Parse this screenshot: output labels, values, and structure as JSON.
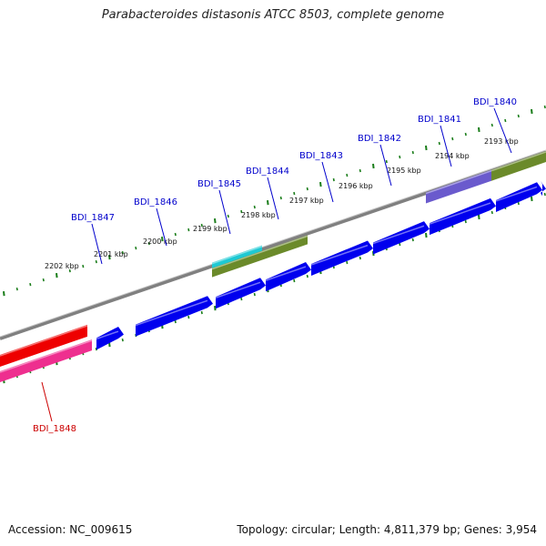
{
  "title": "Parabacteroides distasonis ATCC 8503, complete genome",
  "footer": {
    "accession": "Accession: NC_009615",
    "summary": "Topology: circular; Length: 4,811,379 bp; Genes: 3,954"
  },
  "colors": {
    "forward_cds": "#0000ee",
    "reverse_cds": "#ee0000",
    "reverse_pink": "#ee2f8f",
    "olive": "#6b8a2a",
    "cyan": "#1ec9d4",
    "slate": "#6a5acd",
    "ruler": "#1a7d1a",
    "backbone": "#808080",
    "label_blue": "#0000cc",
    "label_red": "#cc0000"
  },
  "ruler_ticks": [
    {
      "label": "2193 kbp"
    },
    {
      "label": "2194 kbp"
    },
    {
      "label": "2195 kbp"
    },
    {
      "label": "2196 kbp"
    },
    {
      "label": "2197 kbp"
    },
    {
      "label": "2198 kbp"
    },
    {
      "label": "2199 kbp"
    },
    {
      "label": "2200 kbp"
    },
    {
      "label": "2201 kbp"
    },
    {
      "label": "2202 kbp"
    }
  ],
  "gene_labels": [
    {
      "text": "BDI_1840",
      "strand": "forward"
    },
    {
      "text": "BDI_1841",
      "strand": "forward"
    },
    {
      "text": "BDI_1842",
      "strand": "forward"
    },
    {
      "text": "BDI_1843",
      "strand": "forward"
    },
    {
      "text": "BDI_1844",
      "strand": "forward"
    },
    {
      "text": "BDI_1845",
      "strand": "forward"
    },
    {
      "text": "BDI_1846",
      "strand": "forward"
    },
    {
      "text": "BDI_1847",
      "strand": "forward"
    },
    {
      "text": "BDI_1848",
      "strand": "reverse"
    }
  ]
}
